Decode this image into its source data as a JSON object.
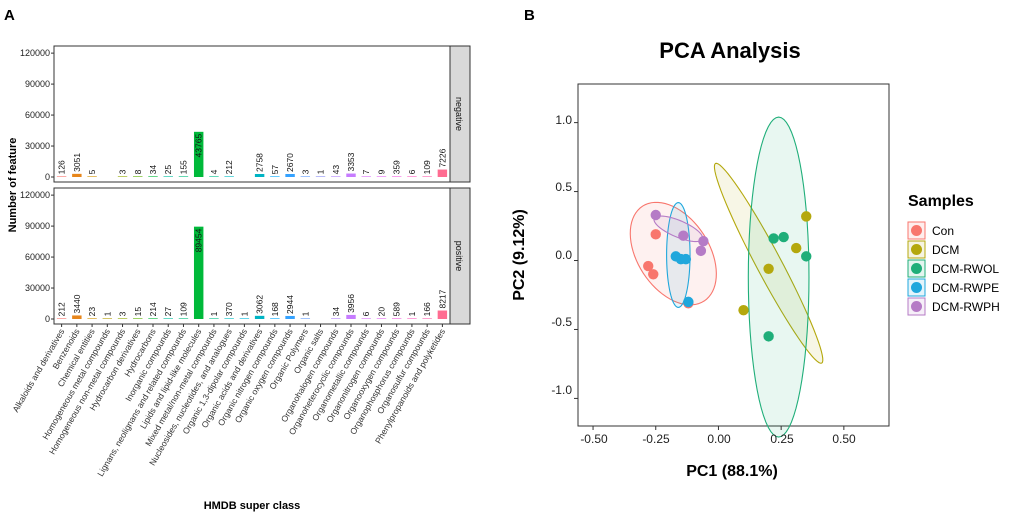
{
  "panel_a": {
    "label": "A",
    "chart_data": {
      "type": "bar",
      "xlabel": "HMDB super class",
      "ylabel": "Number of feature",
      "ylim": [
        0,
        120000
      ],
      "yticks": [
        "0",
        "30000",
        "60000",
        "90000",
        "120000"
      ],
      "categories": [
        "Alkaloids and derivatives",
        "Benzenoids",
        "Chemical entities",
        "Homogeneous metal compounds",
        "Homogeneous non-metal compounds",
        "Hydrocarbon derivatives",
        "Hydrocarbons",
        "Inorganic compounds",
        "Lignans, neolignans and related compounds",
        "Lipids and lipid-like molecules",
        "Mixed metal/non-metal compounds",
        "Nucleosides, nucleotides, and analogues",
        "Organic 1,3-dipolar compounds",
        "Organic acids and derivatives",
        "Organic nitrogen compounds",
        "Organic oxygen compounds",
        "Organic Polymers",
        "Organic salts",
        "Organohalogen compounds",
        "Organoheterocyclic compounds",
        "Organometallic compounds",
        "Organonitrogen compounds",
        "Organooxygen compounds",
        "Organophosphorus compounds",
        "Organosulfur compounds",
        "Phenylpropanoids and polyketides"
      ],
      "colors": [
        "#F8766D",
        "#E7861B",
        "#D39200",
        "#B79F00",
        "#93AA00",
        "#5EB300",
        "#00BA38",
        "#00C19F",
        "#00BF7D",
        "#00B93A",
        "#00C08B",
        "#00BFC4",
        "#00BAE0",
        "#00B4C4",
        "#00A9FF",
        "#35A2FF",
        "#619CFF",
        "#8C8FF5",
        "#B385FF",
        "#C77CFF",
        "#DB72FB",
        "#E76BF3",
        "#F564E3",
        "#FF61C3",
        "#FF64B0",
        "#FF6C91"
      ],
      "series": [
        {
          "name": "negative",
          "values": [
            126,
            3051,
            5,
            null,
            3,
            8,
            34,
            25,
            155,
            43765,
            4,
            212,
            null,
            2758,
            57,
            2670,
            3,
            1,
            43,
            3353,
            7,
            9,
            359,
            6,
            109,
            7226
          ]
        },
        {
          "name": "positive",
          "values": [
            212,
            3440,
            23,
            1,
            3,
            15,
            214,
            27,
            109,
            89454,
            1,
            370,
            1,
            3062,
            168,
            2944,
            1,
            null,
            34,
            3956,
            6,
            20,
            589,
            1,
            166,
            8217
          ]
        }
      ]
    }
  },
  "panel_b": {
    "label": "B",
    "chart_data": {
      "type": "scatter",
      "title": "PCA Analysis",
      "xlabel": "PC1 (88.1%)",
      "ylabel": "PC2 (9.12%)",
      "xlim": [
        -0.56,
        0.68
      ],
      "ylim": [
        -1.2,
        1.28
      ],
      "xticks": [
        -0.5,
        -0.25,
        0.0,
        0.25,
        0.5
      ],
      "xtick_labels": [
        "-0.50",
        "-0.25",
        "0.00",
        "0.25",
        "0.50"
      ],
      "yticks": [
        -1.0,
        -0.5,
        0.0,
        0.5,
        1.0
      ],
      "ytick_labels": [
        "-1.0",
        "-0.5",
        "0.0",
        "0.5",
        "1.0"
      ],
      "legend_title": "Samples",
      "legend_position": "right",
      "series": [
        {
          "name": "Con",
          "color": "#F8766D",
          "points": [
            [
              -0.28,
              -0.04
            ],
            [
              -0.26,
              -0.1
            ],
            [
              -0.25,
              0.19
            ],
            [
              -0.12,
              -0.31
            ]
          ],
          "ellipse": {
            "cx": -0.18,
            "cy": 0.05,
            "rx": 0.41,
            "ry": 0.26,
            "angle_deg": -57
          }
        },
        {
          "name": "DCM",
          "color": "#B4A80D",
          "points": [
            [
              0.1,
              -0.36
            ],
            [
              0.2,
              -0.06
            ],
            [
              0.31,
              0.09
            ],
            [
              0.35,
              0.32
            ]
          ],
          "ellipse": {
            "cx": 0.2,
            "cy": -0.02,
            "rx": 0.82,
            "ry": 0.09,
            "angle_deg": -62
          }
        },
        {
          "name": "DCM-RWOL",
          "color": "#1FAE79",
          "points": [
            [
              0.2,
              -0.55
            ],
            [
              0.22,
              0.16
            ],
            [
              0.26,
              0.17
            ],
            [
              0.35,
              0.03
            ]
          ],
          "ellipse": {
            "cx": 0.24,
            "cy": -0.12,
            "rx": 0.22,
            "ry": 1.16,
            "angle_deg": 0
          }
        },
        {
          "name": "DCM-RWPE",
          "color": "#20A7DC",
          "points": [
            [
              -0.17,
              0.03
            ],
            [
              -0.15,
              0.01
            ],
            [
              -0.13,
              0.01
            ],
            [
              -0.12,
              -0.3
            ]
          ],
          "ellipse": {
            "cx": -0.16,
            "cy": 0.04,
            "rx": 0.085,
            "ry": 0.38,
            "angle_deg": 0
          }
        },
        {
          "name": "DCM-RWPH",
          "color": "#B57BC6",
          "points": [
            [
              -0.25,
              0.33
            ],
            [
              -0.14,
              0.18
            ],
            [
              -0.07,
              0.07
            ],
            [
              -0.06,
              0.14
            ]
          ],
          "ellipse": {
            "cx": -0.16,
            "cy": 0.23,
            "rx": 0.19,
            "ry": 0.06,
            "angle_deg": -23
          }
        }
      ]
    }
  }
}
